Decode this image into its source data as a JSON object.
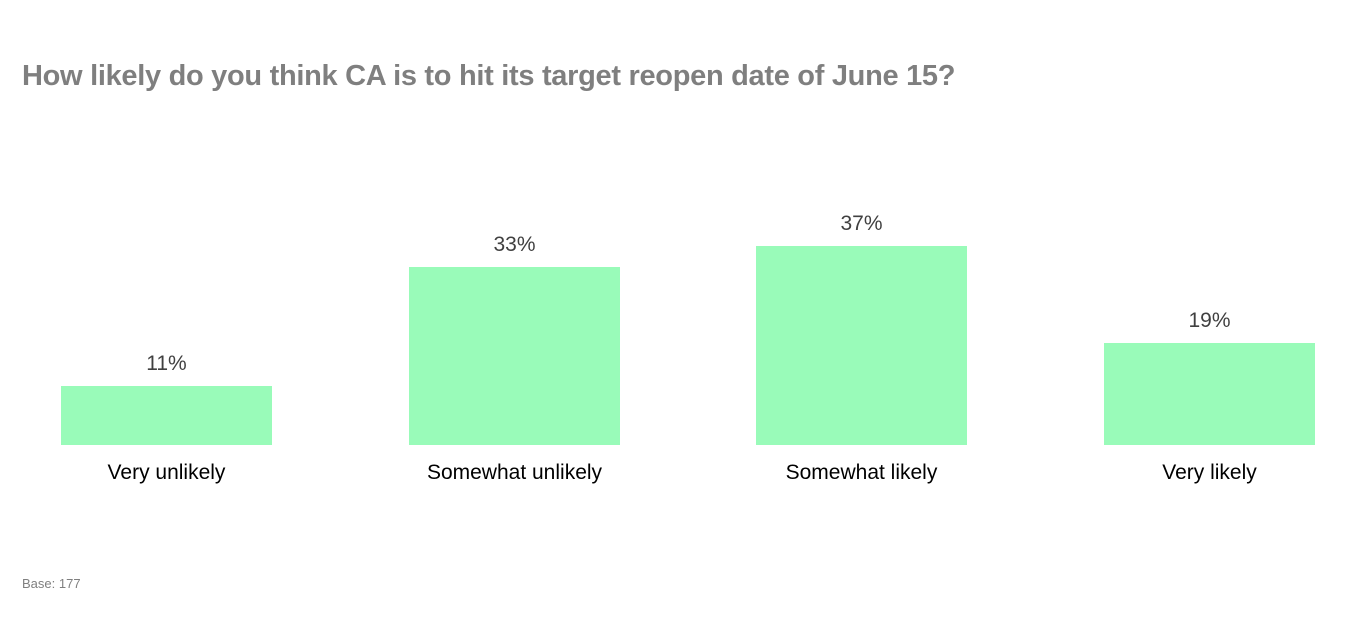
{
  "chart_data": {
    "type": "bar",
    "title": "How likely do you think CA is to hit its target reopen date of June 15?",
    "categories": [
      "Very unlikely",
      "Somewhat unlikely",
      "Somewhat likely",
      "Very likely"
    ],
    "values": [
      11,
      33,
      37,
      19
    ],
    "value_labels": [
      "11%",
      "33%",
      "37%",
      "19%"
    ],
    "xlabel": "",
    "ylabel": "",
    "ylim": [
      0,
      40
    ],
    "grid": false,
    "legend": null,
    "bar_color": "#99fbb9",
    "footnote": "Base: 177"
  }
}
